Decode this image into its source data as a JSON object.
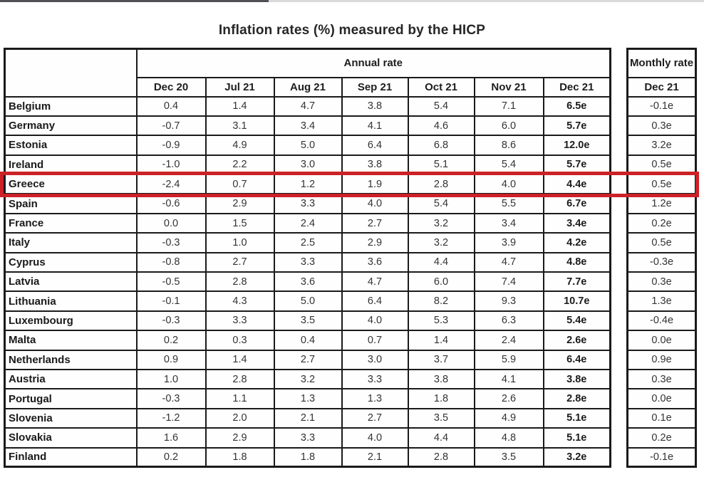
{
  "page": {
    "title": "Inflation rates (%) measured by the HICP"
  },
  "chart_data": {
    "type": "table",
    "title": "Inflation rates (%) measured by the HICP",
    "group_headers": {
      "annual": "Annual rate",
      "monthly": "Monthly rate"
    },
    "columns": [
      "Dec 20",
      "Jul 21",
      "Aug 21",
      "Sep 21",
      "Oct 21",
      "Nov 21",
      "Dec 21"
    ],
    "monthly_column": "Dec 21",
    "rows": [
      {
        "country": "Belgium",
        "annual": [
          "0.4",
          "1.4",
          "4.7",
          "3.8",
          "5.4",
          "7.1",
          "6.5e"
        ],
        "monthly": "-0.1e"
      },
      {
        "country": "Germany",
        "annual": [
          "-0.7",
          "3.1",
          "3.4",
          "4.1",
          "4.6",
          "6.0",
          "5.7e"
        ],
        "monthly": "0.3e"
      },
      {
        "country": "Estonia",
        "annual": [
          "-0.9",
          "4.9",
          "5.0",
          "6.4",
          "6.8",
          "8.6",
          "12.0e"
        ],
        "monthly": "3.2e"
      },
      {
        "country": "Ireland",
        "annual": [
          "-1.0",
          "2.2",
          "3.0",
          "3.8",
          "5.1",
          "5.4",
          "5.7e"
        ],
        "monthly": "0.5e"
      },
      {
        "country": "Greece",
        "annual": [
          "-2.4",
          "0.7",
          "1.2",
          "1.9",
          "2.8",
          "4.0",
          "4.4e"
        ],
        "monthly": "0.5e"
      },
      {
        "country": "Spain",
        "annual": [
          "-0.6",
          "2.9",
          "3.3",
          "4.0",
          "5.4",
          "5.5",
          "6.7e"
        ],
        "monthly": "1.2e"
      },
      {
        "country": "France",
        "annual": [
          "0.0",
          "1.5",
          "2.4",
          "2.7",
          "3.2",
          "3.4",
          "3.4e"
        ],
        "monthly": "0.2e"
      },
      {
        "country": "Italy",
        "annual": [
          "-0.3",
          "1.0",
          "2.5",
          "2.9",
          "3.2",
          "3.9",
          "4.2e"
        ],
        "monthly": "0.5e"
      },
      {
        "country": "Cyprus",
        "annual": [
          "-0.8",
          "2.7",
          "3.3",
          "3.6",
          "4.4",
          "4.7",
          "4.8e"
        ],
        "monthly": "-0.3e"
      },
      {
        "country": "Latvia",
        "annual": [
          "-0.5",
          "2.8",
          "3.6",
          "4.7",
          "6.0",
          "7.4",
          "7.7e"
        ],
        "monthly": "0.3e"
      },
      {
        "country": "Lithuania",
        "annual": [
          "-0.1",
          "4.3",
          "5.0",
          "6.4",
          "8.2",
          "9.3",
          "10.7e"
        ],
        "monthly": "1.3e"
      },
      {
        "country": "Luxembourg",
        "annual": [
          "-0.3",
          "3.3",
          "3.5",
          "4.0",
          "5.3",
          "6.3",
          "5.4e"
        ],
        "monthly": "-0.4e"
      },
      {
        "country": "Malta",
        "annual": [
          "0.2",
          "0.3",
          "0.4",
          "0.7",
          "1.4",
          "2.4",
          "2.6e"
        ],
        "monthly": "0.0e"
      },
      {
        "country": "Netherlands",
        "annual": [
          "0.9",
          "1.4",
          "2.7",
          "3.0",
          "3.7",
          "5.9",
          "6.4e"
        ],
        "monthly": "0.9e"
      },
      {
        "country": "Austria",
        "annual": [
          "1.0",
          "2.8",
          "3.2",
          "3.3",
          "3.8",
          "4.1",
          "3.8e"
        ],
        "monthly": "0.3e"
      },
      {
        "country": "Portugal",
        "annual": [
          "-0.3",
          "1.1",
          "1.3",
          "1.3",
          "1.8",
          "2.6",
          "2.8e"
        ],
        "monthly": "0.0e"
      },
      {
        "country": "Slovenia",
        "annual": [
          "-1.2",
          "2.0",
          "2.1",
          "2.7",
          "3.5",
          "4.9",
          "5.1e"
        ],
        "monthly": "0.1e"
      },
      {
        "country": "Slovakia",
        "annual": [
          "1.6",
          "2.9",
          "3.3",
          "4.0",
          "4.4",
          "4.8",
          "5.1e"
        ],
        "monthly": "0.2e"
      },
      {
        "country": "Finland",
        "annual": [
          "0.2",
          "1.8",
          "1.8",
          "2.1",
          "2.8",
          "3.5",
          "3.2e"
        ],
        "monthly": "-0.1e"
      }
    ],
    "highlight": {
      "country": "Greece",
      "color": "#cc2127"
    }
  }
}
